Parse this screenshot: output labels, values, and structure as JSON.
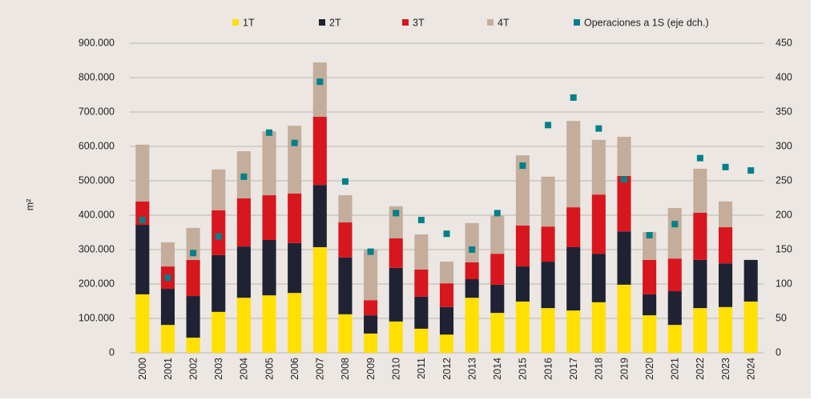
{
  "chart_data": {
    "type": "bar",
    "stacked": true,
    "y_label": "m²",
    "categories": [
      "2000",
      "2001",
      "2002",
      "2003",
      "2004",
      "2005",
      "2006",
      "2007",
      "2008",
      "2009",
      "2010",
      "2011",
      "2012",
      "2013",
      "2014",
      "2015",
      "2016",
      "2017",
      "2018",
      "2019",
      "2020",
      "2021",
      "2022",
      "2023",
      "2024"
    ],
    "series": [
      {
        "name": "1T",
        "color": "#ffe000",
        "values": [
          170000,
          81000,
          44000,
          119000,
          160000,
          167000,
          174000,
          307000,
          112000,
          56000,
          91000,
          70000,
          53000,
          160000,
          116000,
          149000,
          130000,
          123000,
          147000,
          198000,
          109000,
          81000,
          130000,
          133000,
          149000
        ]
      },
      {
        "name": "2T",
        "color": "#1f2233",
        "values": [
          202000,
          105000,
          121000,
          165000,
          149000,
          161000,
          145000,
          181000,
          165000,
          53000,
          156000,
          93000,
          80000,
          54000,
          82000,
          102000,
          135000,
          184000,
          141000,
          155000,
          61000,
          98000,
          140000,
          127000,
          121000
        ]
      },
      {
        "name": "3T",
        "color": "#d7161e",
        "values": [
          68000,
          65000,
          105000,
          130000,
          140000,
          130000,
          144000,
          198000,
          102000,
          44000,
          86000,
          79000,
          69000,
          49000,
          90000,
          119000,
          102000,
          116000,
          172000,
          161000,
          100000,
          95000,
          137000,
          105000,
          null
        ]
      },
      {
        "name": "4T",
        "color": "#c4ad9b",
        "values": [
          165000,
          70000,
          93000,
          119000,
          137000,
          186000,
          197000,
          158000,
          79000,
          147000,
          93000,
          102000,
          63000,
          114000,
          110000,
          204000,
          145000,
          251000,
          159000,
          114000,
          81000,
          147000,
          128000,
          75000,
          null
        ]
      },
      {
        "name": "Operaciones a 1S (eje dch.)",
        "color": "#00808a",
        "type": "scatter",
        "axis": "y2",
        "values": [
          193,
          109,
          145,
          169,
          256,
          320,
          305,
          394,
          249,
          147,
          203,
          193,
          173,
          150,
          203,
          272,
          331,
          371,
          326,
          252,
          171,
          187,
          283,
          270,
          265
        ]
      }
    ],
    "ylim": [
      0,
      900000
    ],
    "yticks": [
      0,
      {
        "value": 100000,
        "label": "100.000"
      },
      {
        "value": 200000,
        "label": "200.000"
      },
      {
        "value": 300000,
        "label": "300.000"
      },
      {
        "value": 400000,
        "label": "400.000"
      },
      {
        "value": 500000,
        "label": "500.000"
      },
      {
        "value": 600000,
        "label": "600.000"
      },
      {
        "value": 700000,
        "label": "700.000"
      },
      {
        "value": 800000,
        "label": "800.000"
      },
      {
        "value": 900000,
        "label": "900.000"
      }
    ],
    "y2lim": [
      0,
      450
    ],
    "y2ticks": [
      0,
      50,
      100,
      150,
      200,
      250,
      300,
      350,
      400,
      450
    ],
    "grid": true,
    "legend": "top"
  }
}
